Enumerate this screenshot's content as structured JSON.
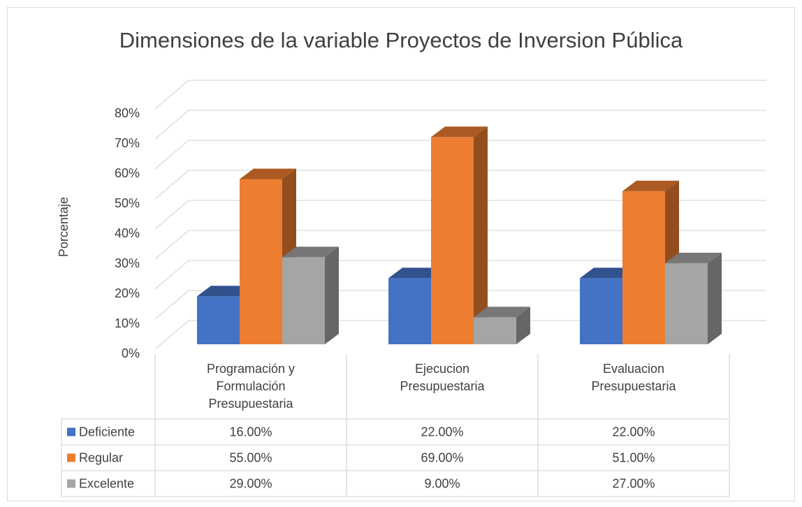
{
  "chart_data": {
    "type": "bar",
    "title": "Dimensiones de la variable Proyectos de Inversion Pública",
    "y_label": "Porcentaje",
    "categories": [
      "Programación y Formulación Presupuestaria",
      "Ejecucion Presupuestaria",
      "Evaluacion Presupuestaria"
    ],
    "series": [
      {
        "name": "Deficiente",
        "color": "#4472c4",
        "values": [
          16,
          22,
          22
        ],
        "value_labels": [
          "16.00%",
          "22.00%",
          "22.00%"
        ]
      },
      {
        "name": "Regular",
        "color": "#ed7d31",
        "values": [
          55,
          69,
          51
        ],
        "value_labels": [
          "55.00%",
          "69.00%",
          "51.00%"
        ]
      },
      {
        "name": "Excelente",
        "color": "#a5a5a5",
        "values": [
          29,
          9,
          27
        ],
        "value_labels": [
          "29.00%",
          "9.00%",
          "27.00%"
        ]
      }
    ],
    "ylim": [
      0,
      80
    ],
    "yticks": [
      {
        "value": 0,
        "label": "0%"
      },
      {
        "value": 10,
        "label": "10%"
      },
      {
        "value": 20,
        "label": "20%"
      },
      {
        "value": 30,
        "label": "30%"
      },
      {
        "value": 40,
        "label": "40%"
      },
      {
        "value": 50,
        "label": "50%"
      },
      {
        "value": 60,
        "label": "60%"
      },
      {
        "value": 70,
        "label": "70%"
      },
      {
        "value": 80,
        "label": "80%"
      }
    ],
    "grid": true
  }
}
